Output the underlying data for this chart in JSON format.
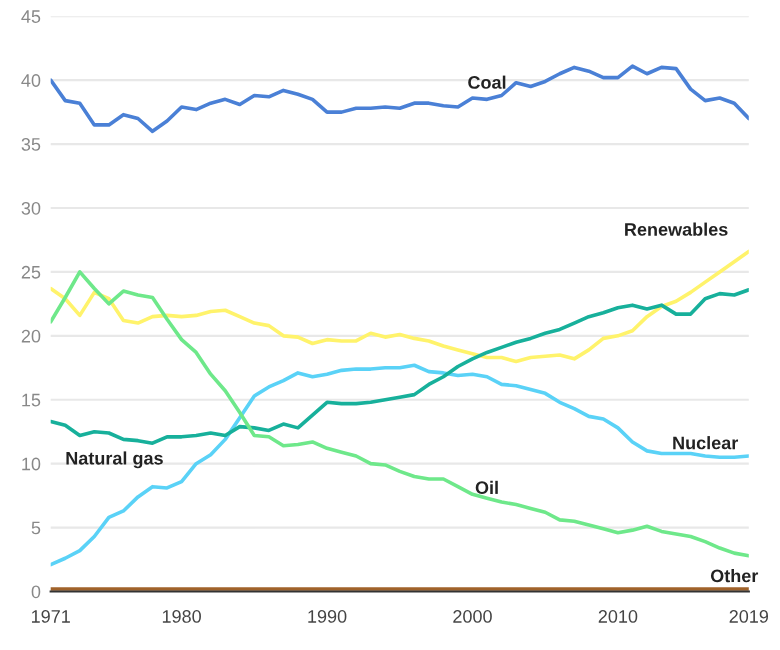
{
  "chart_data": {
    "type": "line",
    "x": [
      1971,
      1972,
      1973,
      1974,
      1975,
      1976,
      1977,
      1978,
      1979,
      1980,
      1981,
      1982,
      1983,
      1984,
      1985,
      1986,
      1987,
      1988,
      1989,
      1990,
      1991,
      1992,
      1993,
      1994,
      1995,
      1996,
      1997,
      1998,
      1999,
      2000,
      2001,
      2002,
      2003,
      2004,
      2005,
      2006,
      2007,
      2008,
      2009,
      2010,
      2011,
      2012,
      2013,
      2014,
      2015,
      2016,
      2017,
      2018,
      2019
    ],
    "series": [
      {
        "name": "Coal",
        "color": "#4a80d6",
        "values": [
          40.0,
          38.4,
          38.2,
          36.5,
          36.5,
          37.3,
          37.0,
          36.0,
          36.8,
          37.9,
          37.7,
          38.2,
          38.5,
          38.1,
          38.8,
          38.7,
          39.2,
          38.9,
          38.5,
          37.5,
          37.5,
          37.8,
          37.8,
          37.9,
          37.8,
          38.2,
          38.2,
          38.0,
          37.9,
          38.6,
          38.5,
          38.8,
          39.8,
          39.5,
          39.9,
          40.5,
          41.0,
          40.7,
          40.2,
          40.2,
          41.1,
          40.5,
          41.0,
          40.9,
          39.3,
          38.4,
          38.6,
          38.2,
          37.0
        ]
      },
      {
        "name": "Renewables",
        "color": "#fff36b",
        "values": [
          23.7,
          22.9,
          21.6,
          23.4,
          22.9,
          21.2,
          21.0,
          21.5,
          21.6,
          21.5,
          21.6,
          21.9,
          22.0,
          21.5,
          21.0,
          20.8,
          20.0,
          19.9,
          19.4,
          19.7,
          19.6,
          19.6,
          20.2,
          19.9,
          20.1,
          19.8,
          19.6,
          19.2,
          18.9,
          18.6,
          18.3,
          18.3,
          18.0,
          18.3,
          18.4,
          18.5,
          18.2,
          18.9,
          19.8,
          20.0,
          20.4,
          21.5,
          22.3,
          22.7,
          23.4,
          24.2,
          25.0,
          25.8,
          26.6
        ]
      },
      {
        "name": "Nuclear",
        "color": "#5ad2f7",
        "values": [
          2.1,
          2.6,
          3.2,
          4.3,
          5.8,
          6.3,
          7.4,
          8.2,
          8.1,
          8.6,
          10.0,
          10.7,
          11.9,
          13.6,
          15.3,
          16.0,
          16.5,
          17.1,
          16.8,
          17.0,
          17.3,
          17.4,
          17.4,
          17.5,
          17.5,
          17.7,
          17.2,
          17.1,
          16.9,
          17.0,
          16.8,
          16.2,
          16.1,
          15.8,
          15.5,
          14.8,
          14.3,
          13.7,
          13.5,
          12.8,
          11.7,
          11.0,
          10.8,
          10.8,
          10.8,
          10.6,
          10.5,
          10.5,
          10.6
        ]
      },
      {
        "name": "Natural gas",
        "color": "#17b09b",
        "values": [
          13.3,
          13.0,
          12.2,
          12.5,
          12.4,
          11.9,
          11.8,
          11.6,
          12.1,
          12.1,
          12.2,
          12.4,
          12.2,
          12.9,
          12.8,
          12.6,
          13.1,
          12.8,
          13.8,
          14.8,
          14.7,
          14.7,
          14.8,
          15.0,
          15.2,
          15.4,
          16.2,
          16.8,
          17.6,
          18.2,
          18.7,
          19.1,
          19.5,
          19.8,
          20.2,
          20.5,
          21.0,
          21.5,
          21.8,
          22.2,
          22.4,
          22.1,
          22.4,
          21.7,
          21.7,
          22.9,
          23.3,
          23.2,
          23.6
        ]
      },
      {
        "name": "Oil",
        "color": "#6ee88a",
        "values": [
          21.1,
          23.0,
          25.0,
          23.7,
          22.5,
          23.5,
          23.2,
          23.0,
          21.3,
          19.7,
          18.7,
          17.0,
          15.7,
          14.0,
          12.2,
          12.1,
          11.4,
          11.5,
          11.7,
          11.2,
          10.9,
          10.6,
          10.0,
          9.9,
          9.4,
          9.0,
          8.8,
          8.8,
          8.2,
          7.6,
          7.3,
          7.0,
          6.8,
          6.5,
          6.2,
          5.6,
          5.5,
          5.2,
          4.9,
          4.6,
          4.8,
          5.1,
          4.7,
          4.5,
          4.3,
          3.9,
          3.4,
          3.0,
          2.8
        ]
      },
      {
        "name": "Other",
        "color": "#a0622a",
        "values": [
          0.2,
          0.2,
          0.2,
          0.2,
          0.2,
          0.2,
          0.2,
          0.2,
          0.2,
          0.2,
          0.2,
          0.2,
          0.2,
          0.2,
          0.2,
          0.2,
          0.2,
          0.2,
          0.2,
          0.2,
          0.2,
          0.2,
          0.2,
          0.2,
          0.2,
          0.2,
          0.2,
          0.2,
          0.2,
          0.2,
          0.2,
          0.2,
          0.2,
          0.2,
          0.2,
          0.2,
          0.2,
          0.2,
          0.2,
          0.2,
          0.2,
          0.2,
          0.2,
          0.2,
          0.2,
          0.2,
          0.2,
          0.2,
          0.2
        ]
      }
    ],
    "xlim": [
      1971,
      2019
    ],
    "xticks": [
      1971,
      1980,
      1990,
      2000,
      2010,
      2019
    ],
    "ylim": [
      0,
      45
    ],
    "yticks": [
      0,
      5,
      10,
      15,
      20,
      25,
      30,
      35,
      40,
      45
    ],
    "grid": "y",
    "legend": false,
    "marker": "none",
    "line_style": "solid"
  }
}
